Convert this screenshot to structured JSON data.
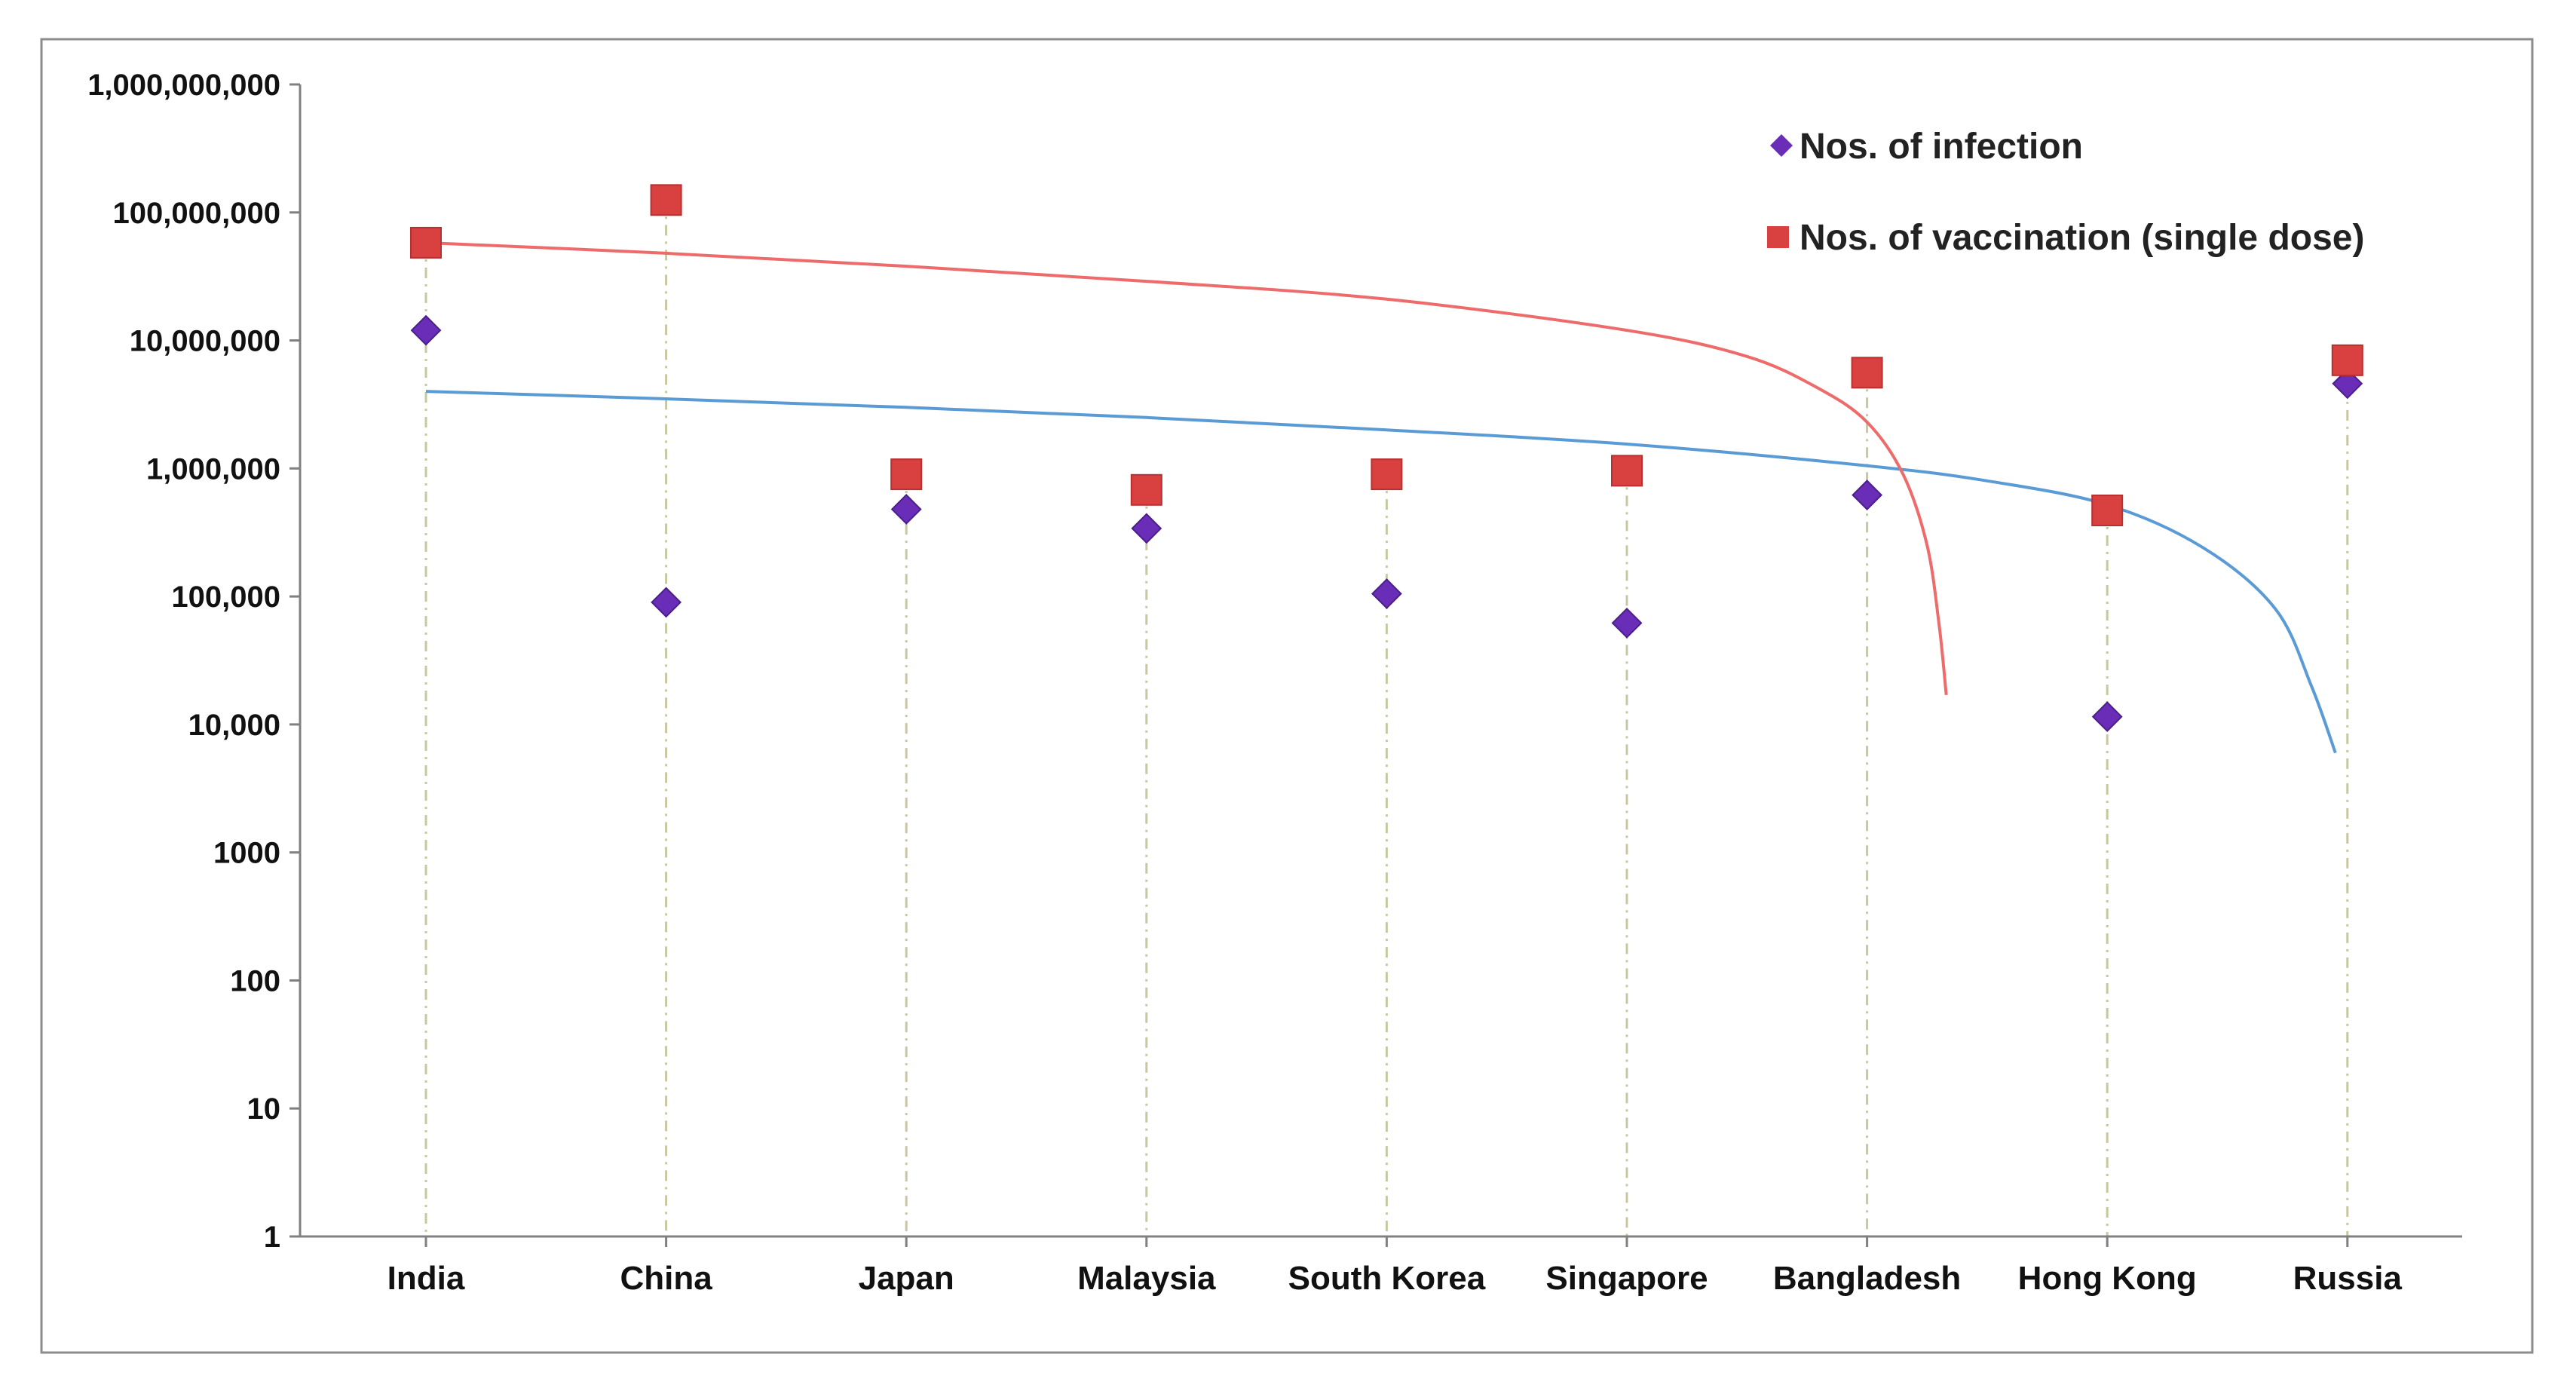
{
  "chart_data": {
    "type": "scatter",
    "title": "",
    "xlabel": "",
    "ylabel": "",
    "y_scale": "log",
    "ylim": [
      1,
      1000000000
    ],
    "y_tick_values": [
      1,
      10,
      100,
      1000,
      10000,
      100000,
      1000000,
      10000000,
      100000000,
      1000000000
    ],
    "y_tick_labels": [
      "1",
      "10",
      "100",
      "1000",
      "10,000",
      "100,000",
      "1,000,000",
      "10,000,000",
      "100,000,000",
      "1,000,000,000"
    ],
    "categories": [
      "India",
      "China",
      "Japan",
      "Malaysia",
      "South Korea",
      "Singapore",
      "Bangladesh",
      "Hong Kong",
      "Russia"
    ],
    "legend_position": "top-right",
    "grid": false,
    "series": [
      {
        "name": "Nos. of infection",
        "marker": "diamond",
        "color": "#6a2db8",
        "values": [
          12000000,
          90000,
          480000,
          340000,
          105000,
          62000,
          620000,
          11500,
          4600000
        ]
      },
      {
        "name": "Nos. of vaccination (single dose)",
        "marker": "square",
        "color": "#d94040",
        "values": [
          58000000,
          125000000,
          900000,
          680000,
          900000,
          960000,
          5600000,
          470000,
          7000000
        ]
      }
    ],
    "trendlines": [
      {
        "series": "Nos. of infection",
        "color": "#5b9bd5",
        "x": [
          1,
          2,
          3,
          4,
          5,
          6,
          7,
          7.5,
          8,
          8.4,
          8.7,
          8.85,
          8.95
        ],
        "y": [
          4000000,
          3500000,
          3000000,
          2500000,
          2000000,
          1550000,
          1050000,
          800000,
          520000,
          240000,
          80000,
          20000,
          6000
        ]
      },
      {
        "series": "Nos. of vaccination (single dose)",
        "color": "#ee6b6b",
        "x": [
          1,
          2,
          3,
          4,
          5,
          6,
          6.5,
          6.8,
          7,
          7.15,
          7.25,
          7.3,
          7.33
        ],
        "y": [
          58000000,
          48000000,
          38000000,
          29000000,
          21000000,
          12000000,
          7500000,
          4200000,
          2300000,
          900000,
          250000,
          60000,
          17000
        ]
      }
    ]
  }
}
